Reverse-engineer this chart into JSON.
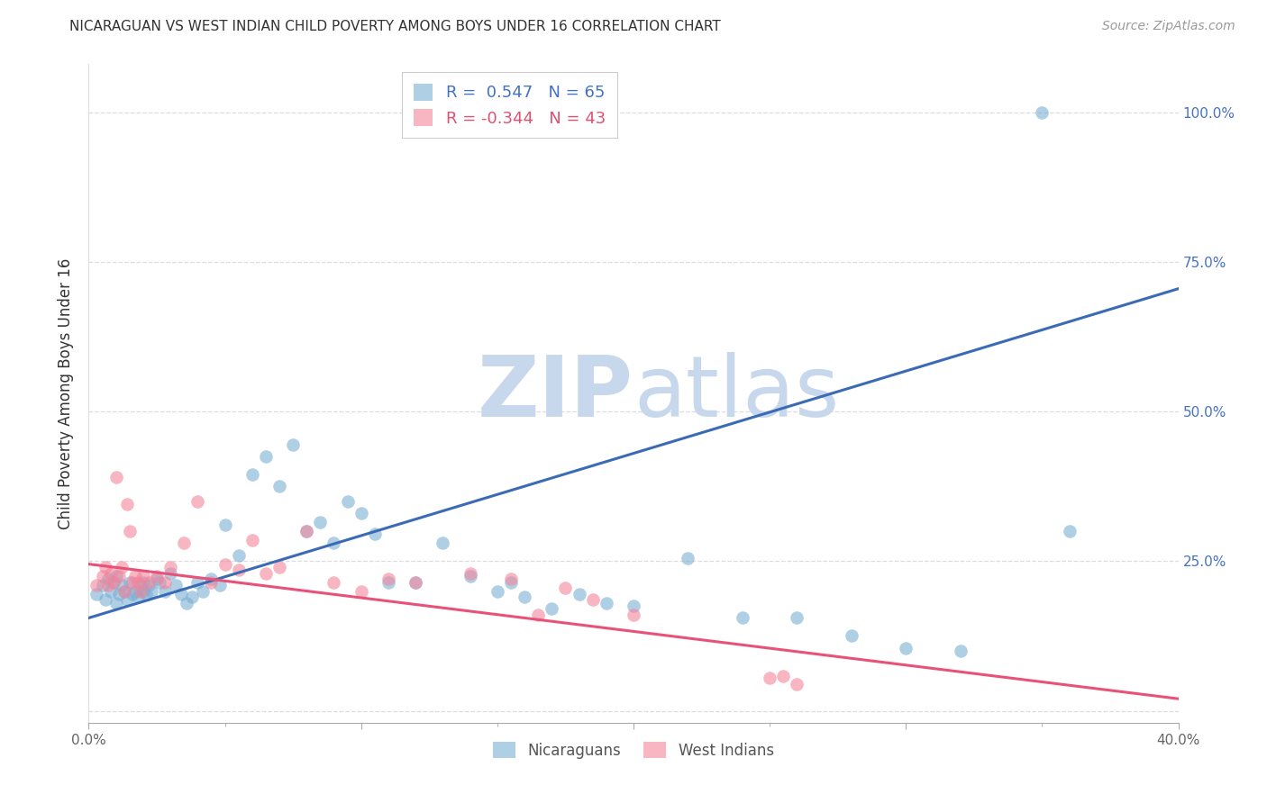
{
  "title": "NICARAGUAN VS WEST INDIAN CHILD POVERTY AMONG BOYS UNDER 16 CORRELATION CHART",
  "source": "Source: ZipAtlas.com",
  "ylabel": "Child Poverty Among Boys Under 16",
  "xlim": [
    0.0,
    0.4
  ],
  "ylim": [
    -0.02,
    1.08
  ],
  "ytick_positions": [
    0.0,
    0.25,
    0.5,
    0.75,
    1.0
  ],
  "ytick_labels": [
    "",
    "25.0%",
    "50.0%",
    "75.0%",
    "100.0%"
  ],
  "xtick_positions": [
    0.0,
    0.1,
    0.2,
    0.3,
    0.4
  ],
  "xtick_labels": [
    "0.0%",
    "",
    "",
    "",
    "40.0%"
  ],
  "blue_R": 0.547,
  "blue_N": 65,
  "pink_R": -0.344,
  "pink_N": 43,
  "blue_color": "#7BAFD4",
  "pink_color": "#F4849A",
  "blue_line_color": "#3B6BB5",
  "pink_line_color": "#E8527A",
  "blue_label_color": "#4472C4",
  "pink_label_color": "#E05070",
  "watermark_zip": "ZIP",
  "watermark_atlas": "atlas",
  "watermark_color_zip": "#D0DEF0",
  "watermark_color_atlas": "#D0DEF0",
  "background_color": "#FFFFFF",
  "grid_color": "#DDDDDD",
  "blue_trend_x0": 0.0,
  "blue_trend_y0": 0.155,
  "blue_trend_x1": 0.4,
  "blue_trend_y1": 0.705,
  "pink_trend_x0": 0.0,
  "pink_trend_y0": 0.245,
  "pink_trend_x1": 0.4,
  "pink_trend_y1": 0.02,
  "blue_scatter_x": [
    0.003,
    0.005,
    0.006,
    0.007,
    0.008,
    0.009,
    0.01,
    0.01,
    0.011,
    0.012,
    0.013,
    0.014,
    0.015,
    0.016,
    0.017,
    0.018,
    0.019,
    0.02,
    0.02,
    0.021,
    0.022,
    0.023,
    0.025,
    0.026,
    0.028,
    0.03,
    0.032,
    0.034,
    0.036,
    0.038,
    0.04,
    0.042,
    0.045,
    0.048,
    0.05,
    0.055,
    0.06,
    0.065,
    0.07,
    0.075,
    0.08,
    0.085,
    0.09,
    0.095,
    0.1,
    0.105,
    0.11,
    0.12,
    0.13,
    0.14,
    0.15,
    0.155,
    0.16,
    0.17,
    0.18,
    0.19,
    0.2,
    0.22,
    0.24,
    0.26,
    0.28,
    0.3,
    0.32,
    0.35,
    0.36
  ],
  "blue_scatter_y": [
    0.195,
    0.21,
    0.185,
    0.22,
    0.2,
    0.215,
    0.18,
    0.225,
    0.195,
    0.21,
    0.2,
    0.185,
    0.215,
    0.195,
    0.2,
    0.19,
    0.21,
    0.2,
    0.215,
    0.195,
    0.21,
    0.2,
    0.22,
    0.215,
    0.2,
    0.23,
    0.21,
    0.195,
    0.18,
    0.19,
    0.215,
    0.2,
    0.22,
    0.21,
    0.31,
    0.26,
    0.395,
    0.425,
    0.375,
    0.445,
    0.3,
    0.315,
    0.28,
    0.35,
    0.33,
    0.295,
    0.215,
    0.215,
    0.28,
    0.225,
    0.2,
    0.215,
    0.19,
    0.17,
    0.195,
    0.18,
    0.175,
    0.255,
    0.155,
    0.155,
    0.125,
    0.105,
    0.1,
    1.0,
    0.3
  ],
  "pink_scatter_x": [
    0.003,
    0.005,
    0.006,
    0.007,
    0.008,
    0.009,
    0.01,
    0.011,
    0.012,
    0.013,
    0.014,
    0.015,
    0.016,
    0.017,
    0.018,
    0.019,
    0.02,
    0.022,
    0.025,
    0.028,
    0.03,
    0.035,
    0.04,
    0.045,
    0.05,
    0.055,
    0.06,
    0.065,
    0.07,
    0.08,
    0.09,
    0.1,
    0.11,
    0.12,
    0.14,
    0.155,
    0.165,
    0.175,
    0.185,
    0.2,
    0.25,
    0.255,
    0.26
  ],
  "pink_scatter_y": [
    0.21,
    0.225,
    0.24,
    0.21,
    0.23,
    0.215,
    0.39,
    0.225,
    0.24,
    0.2,
    0.345,
    0.3,
    0.215,
    0.225,
    0.215,
    0.2,
    0.225,
    0.215,
    0.225,
    0.215,
    0.24,
    0.28,
    0.35,
    0.215,
    0.245,
    0.235,
    0.285,
    0.23,
    0.24,
    0.3,
    0.215,
    0.2,
    0.22,
    0.215,
    0.23,
    0.22,
    0.16,
    0.205,
    0.185,
    0.16,
    0.055,
    0.058,
    0.045
  ]
}
